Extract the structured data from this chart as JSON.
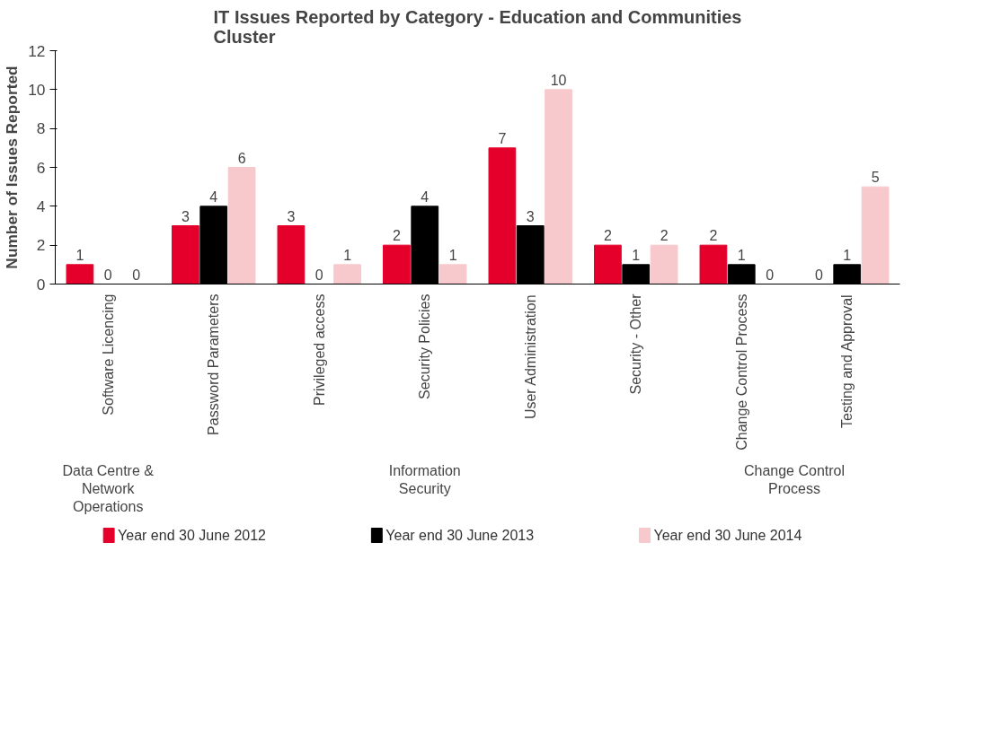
{
  "chart_data": {
    "type": "bar",
    "title": "IT Issues Reported by Category - Education and Communities Cluster",
    "ylabel": "Number of Issues Reported",
    "categories": [
      "Software Licencing",
      "Password Parameters",
      "Privileged access",
      "Security Policies",
      "User Administration",
      "Security - Other",
      "Change Control Process",
      "Testing and Approval"
    ],
    "series": [
      {
        "name": "Year end 30 June 2012",
        "color": "#e4002b",
        "values": [
          1,
          3,
          3,
          2,
          7,
          2,
          2,
          0
        ]
      },
      {
        "name": "Year end 30 June 2013",
        "color": "#000000",
        "values": [
          0,
          4,
          0,
          4,
          3,
          1,
          1,
          1
        ]
      },
      {
        "name": "Year end 30 June 2014",
        "color": "#f7c9cc",
        "values": [
          0,
          6,
          1,
          1,
          10,
          2,
          0,
          5
        ]
      }
    ],
    "ylim": [
      0,
      12
    ],
    "yticks": [
      0,
      2,
      4,
      6,
      8,
      10,
      12
    ],
    "grid": false,
    "legend": "bottom",
    "data_labels": true,
    "annotations": [
      "Data Centre & Network Operations",
      "Information Security",
      "Change Control Process"
    ]
  }
}
